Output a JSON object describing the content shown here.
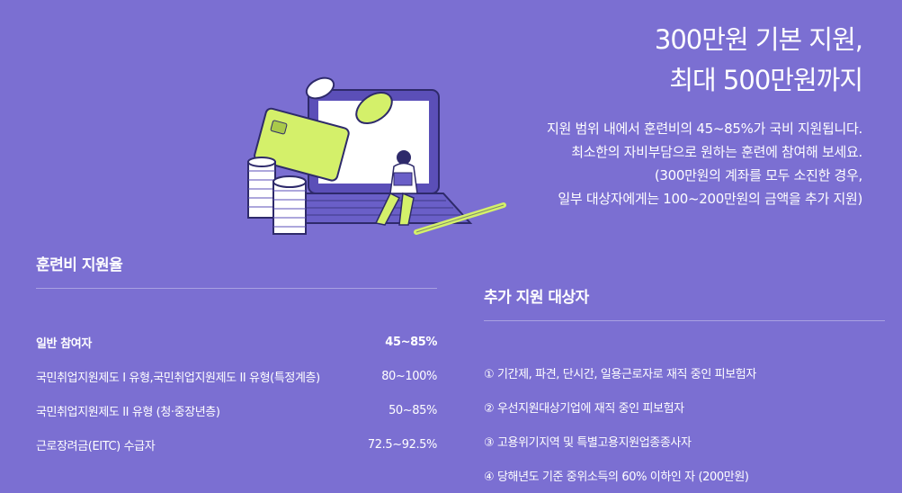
{
  "headline": {
    "line1": "300만원 기본 지원,",
    "line2": "최대 500만원까지"
  },
  "description": {
    "line1": "지원 범위 내에서 훈련비의 45~85%가 국비 지원됩니다.",
    "line2": "최소한의 자비부담으로 원하는 훈련에 참여해 보세요.",
    "line3": "(300만원의 계좌를 모두 소진한 경우,",
    "line4": "일부 대상자에게는 100~200만원의 금액을 추가 지원)"
  },
  "colors": {
    "background": "#7b6fd2",
    "accent": "#d4f06a",
    "laptop": "#5b4fb8",
    "text": "#ffffff"
  },
  "rate_section": {
    "title": "훈련비 지원율",
    "rows": [
      {
        "label": "일반 참여자",
        "value": "45~85%"
      },
      {
        "label": "국민취업지원제도 I 유형,국민취업지원제도 II 유형(특정계층)",
        "value": "80~100%"
      },
      {
        "label": "국민취업지원제도 II 유형 (청·중장년층)",
        "value": "50~85%"
      },
      {
        "label": "근로장려금(EITC) 수급자",
        "value": "72.5~92.5%"
      }
    ]
  },
  "extra_section": {
    "title": "추가 지원 대상자",
    "items": [
      "① 기간제, 파견, 단시간, 일용근로자로 재직 중인 피보험자",
      "② 우선지원대상기업에 재직 중인 피보험자",
      "③ 고용위기지역 및 특별고용지원업종종사자",
      "④ 당해년도 기준 중위소득의 60% 이하인 자 (200만원)"
    ]
  }
}
